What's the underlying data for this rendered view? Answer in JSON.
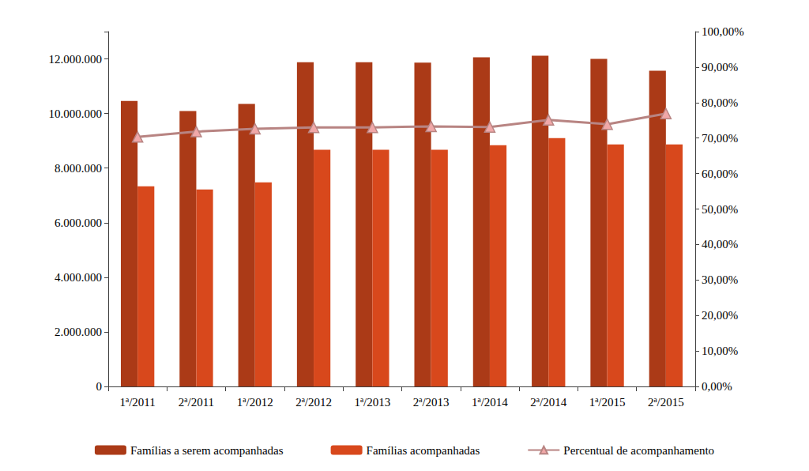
{
  "chart_data": {
    "type": "bar",
    "categories": [
      "1ª/2011",
      "2ª/2011",
      "1ª/2012",
      "2ª/2012",
      "1ª/2013",
      "2ª/2013",
      "1ª/2014",
      "2ª/2014",
      "1ª/2015",
      "2ª/2015"
    ],
    "series": [
      {
        "name": "Famílias a serem acompanhadas",
        "type": "bar",
        "color": "#ab3a17",
        "values": [
          10460000,
          10090000,
          10350000,
          11880000,
          11880000,
          11860000,
          12060000,
          12120000,
          12000000,
          11570000
        ]
      },
      {
        "name": "Famílias acompanhadas",
        "type": "bar",
        "color": "#d8481c",
        "values": [
          7330000,
          7220000,
          7480000,
          8670000,
          8670000,
          8670000,
          8840000,
          9100000,
          8870000,
          8870000
        ]
      },
      {
        "name": "Percentual de acompanhamento",
        "type": "line",
        "axis": "y2",
        "color": "#b88482",
        "marker": "triangle",
        "values": [
          70.3,
          71.8,
          72.6,
          73.0,
          73.0,
          73.3,
          73.1,
          75.1,
          73.9,
          76.9
        ]
      }
    ],
    "ylim": [
      0,
      13000000
    ],
    "yticks": [
      {
        "value": 0,
        "label": "0"
      },
      {
        "value": 2000000,
        "label": "2.000.000"
      },
      {
        "value": 4000000,
        "label": "4.000.000"
      },
      {
        "value": 6000000,
        "label": "6.000.000"
      },
      {
        "value": 8000000,
        "label": "8.000.000"
      },
      {
        "value": 10000000,
        "label": "10.000.000"
      },
      {
        "value": 12000000,
        "label": "12.000.000"
      }
    ],
    "y2lim": [
      0,
      100
    ],
    "y2ticks": [
      {
        "value": 0,
        "label": "0,00%"
      },
      {
        "value": 10,
        "label": "10,00%"
      },
      {
        "value": 20,
        "label": "20,00%"
      },
      {
        "value": 30,
        "label": "30,00%"
      },
      {
        "value": 40,
        "label": "40,00%"
      },
      {
        "value": 50,
        "label": "50,00%"
      },
      {
        "value": 60,
        "label": "60,00%"
      },
      {
        "value": 70,
        "label": "70,00%"
      },
      {
        "value": 80,
        "label": "80,00%"
      },
      {
        "value": 90,
        "label": "90,00%"
      },
      {
        "value": 100,
        "label": "100,00%"
      }
    ],
    "grid": false,
    "legend": "bottom"
  }
}
